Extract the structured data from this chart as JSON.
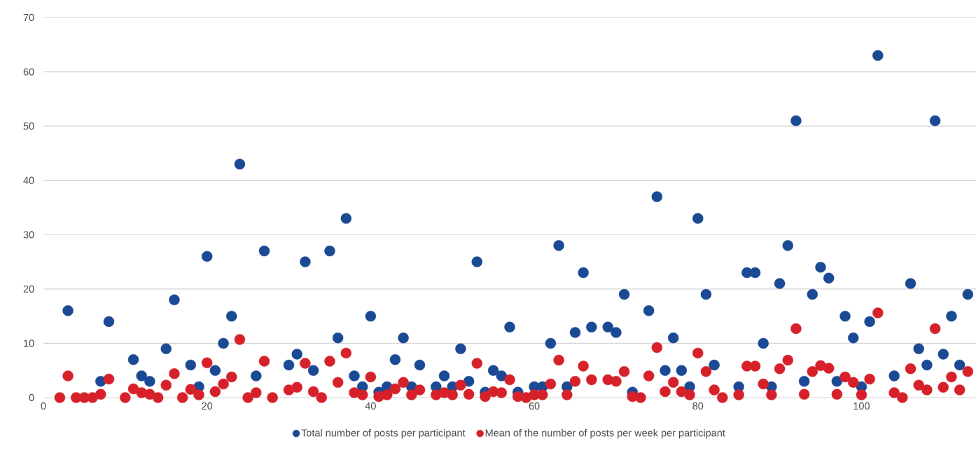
{
  "chart_data": {
    "type": "scatter",
    "x": [
      2,
      3,
      4,
      5,
      6,
      7,
      8,
      10,
      11,
      12,
      13,
      14,
      15,
      16,
      17,
      18,
      19,
      20,
      21,
      22,
      23,
      24,
      25,
      26,
      27,
      28,
      30,
      31,
      32,
      33,
      34,
      35,
      36,
      37,
      38,
      39,
      40,
      41,
      42,
      43,
      44,
      45,
      46,
      48,
      49,
      50,
      51,
      52,
      53,
      54,
      55,
      56,
      57,
      58,
      59,
      60,
      61,
      62,
      63,
      64,
      65,
      66,
      67,
      69,
      70,
      71,
      72,
      73,
      74,
      75,
      76,
      77,
      78,
      79,
      80,
      81,
      82,
      83,
      85,
      86,
      87,
      88,
      89,
      90,
      91,
      92,
      93,
      94,
      95,
      96,
      97,
      98,
      99,
      100,
      101,
      102,
      104,
      105,
      106,
      107,
      108,
      109,
      110,
      111,
      112,
      113
    ],
    "series": [
      {
        "name": "Total number of posts per participant",
        "color": "#1b4a94",
        "values": [
          null,
          16,
          null,
          null,
          null,
          3,
          14,
          null,
          7,
          4,
          3,
          null,
          9,
          18,
          null,
          6,
          2,
          26,
          5,
          10,
          15,
          43,
          null,
          4,
          27,
          null,
          6,
          8,
          25,
          5,
          null,
          27,
          11,
          33,
          4,
          2,
          15,
          1,
          2,
          7,
          11,
          2,
          6,
          2,
          4,
          2,
          9,
          3,
          25,
          1,
          5,
          4,
          13,
          1,
          null,
          2,
          2,
          10,
          28,
          2,
          12,
          23,
          13,
          13,
          12,
          19,
          1,
          null,
          16,
          37,
          5,
          11,
          5,
          2,
          33,
          19,
          6,
          null,
          2,
          23,
          23,
          10,
          2,
          21,
          28,
          51,
          3,
          19,
          24,
          22,
          3,
          15,
          11,
          2,
          14,
          63,
          4,
          null,
          21,
          9,
          6,
          51,
          8,
          15,
          6,
          19
        ]
      },
      {
        "name": "Mean of the number of posts per week per participant",
        "color": "#d7212a",
        "values": [
          0,
          4,
          0,
          0,
          0,
          0.6,
          3.4,
          0,
          1.6,
          0.9,
          0.6,
          0,
          2.3,
          4.4,
          0,
          1.5,
          0.5,
          6.4,
          1.1,
          2.5,
          3.8,
          10.7,
          0,
          0.9,
          6.7,
          0,
          1.4,
          1.9,
          6.3,
          1.1,
          0,
          6.7,
          2.8,
          8.2,
          0.9,
          0.5,
          3.8,
          0.2,
          0.5,
          1.6,
          2.8,
          0.5,
          1.4,
          0.5,
          0.9,
          0.5,
          2.3,
          0.6,
          6.3,
          0.2,
          1.1,
          0.9,
          3.3,
          0.2,
          0,
          0.5,
          0.5,
          2.5,
          6.9,
          0.5,
          3,
          5.8,
          3.3,
          3.3,
          3,
          4.8,
          0.2,
          0,
          4,
          9.2,
          1.1,
          2.8,
          1.1,
          0.5,
          8.2,
          4.8,
          1.4,
          0,
          0.5,
          5.8,
          5.8,
          2.5,
          0.5,
          5.3,
          6.9,
          12.7,
          0.6,
          4.8,
          5.9,
          5.4,
          0.6,
          3.8,
          2.8,
          0.5,
          3.4,
          15.6,
          0.9,
          0,
          5.3,
          2.3,
          1.4,
          12.7,
          1.9,
          3.8,
          1.4,
          4.8
        ]
      }
    ],
    "xlim": [
      0,
      114
    ],
    "ylim": [
      0,
      70
    ],
    "xticks": [
      0,
      20,
      40,
      60,
      80,
      100
    ],
    "yticks": [
      0,
      10,
      20,
      30,
      40,
      50,
      60,
      70
    ],
    "grid": "y",
    "legend": "bottom",
    "marker": "circle"
  }
}
